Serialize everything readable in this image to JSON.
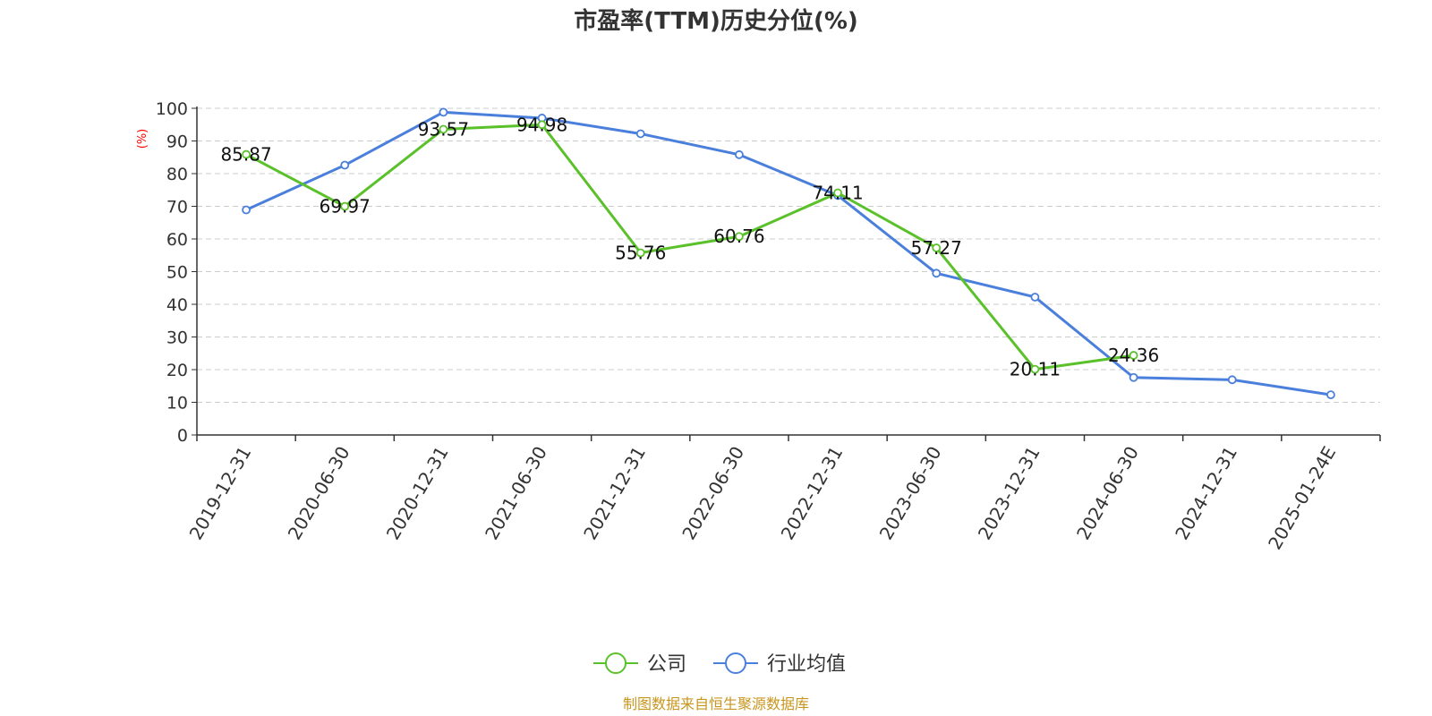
{
  "chart_data": {
    "type": "line",
    "title": "市盈率(TTM)历史分位(%)",
    "ylabel": "(%)",
    "ylim": [
      0,
      100
    ],
    "yticks": [
      0,
      10,
      20,
      30,
      40,
      50,
      60,
      70,
      80,
      90,
      100
    ],
    "grid": true,
    "legend_position": "bottom-center",
    "categories": [
      "2019-12-31",
      "2020-06-30",
      "2020-12-31",
      "2021-06-30",
      "2021-12-31",
      "2022-06-30",
      "2022-12-31",
      "2023-06-30",
      "2023-12-31",
      "2024-06-30",
      "2024-12-31",
      "2025-01-24E"
    ],
    "series": [
      {
        "name": "公司",
        "color": "#5ac12a",
        "values": [
          85.87,
          69.97,
          93.57,
          94.98,
          55.76,
          60.76,
          74.11,
          57.27,
          20.11,
          24.36,
          null,
          null
        ],
        "labels_shown": true
      },
      {
        "name": "行业均值",
        "color": "#4a7fdc",
        "values": [
          68.9,
          82.6,
          98.8,
          97.0,
          92.2,
          85.8,
          73.3,
          49.5,
          42.2,
          17.6,
          16.9,
          12.3
        ],
        "labels_shown": false
      }
    ],
    "source": "制图数据来自恒生聚源数据库",
    "colors": {
      "axis": "#333333",
      "grid": "#cccccc",
      "unit_label": "#ff0000",
      "source_text": "#c8961e"
    }
  }
}
